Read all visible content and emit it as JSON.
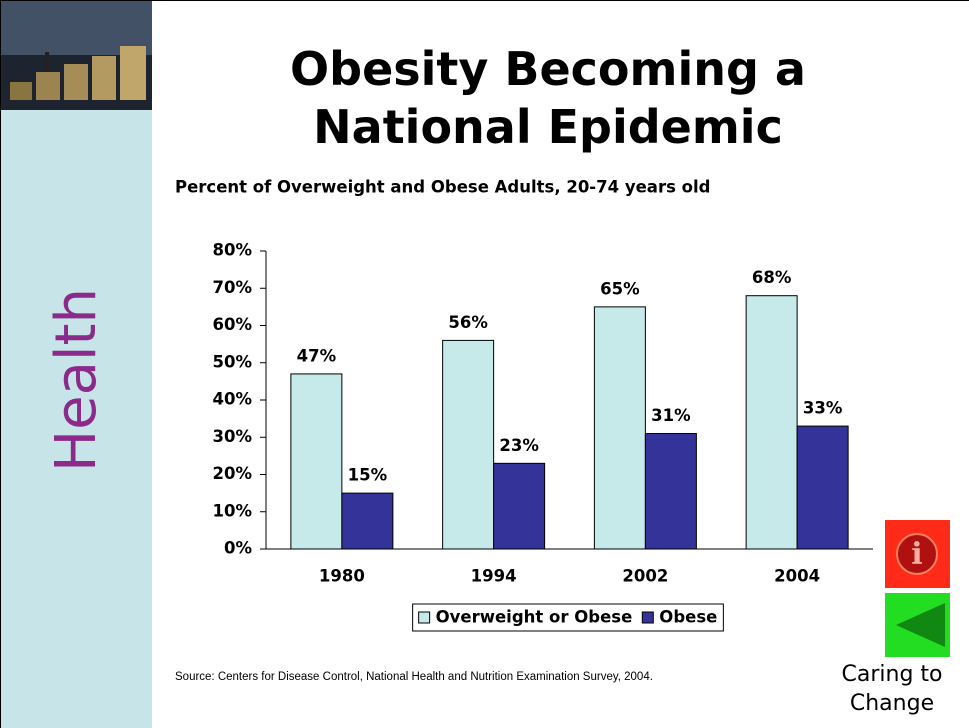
{
  "sidebar_label": "Health",
  "footer_label": "Caring to Change",
  "chart_data": {
    "type": "bar",
    "title": "Obesity Becoming a National Epidemic",
    "subtitle": "Percent of Overweight and Obese Adults, 20-74 years old",
    "source": "Source: Centers for Disease Control, National Health and Nutrition Examination Survey, 2004.",
    "categories": [
      "1980",
      "1994",
      "2002",
      "2004"
    ],
    "series": [
      {
        "name": "Overweight or Obese",
        "color": "#c6e9e9",
        "values": [
          47,
          56,
          65,
          68
        ],
        "value_labels": [
          "47%",
          "56%",
          "65%",
          "68%"
        ]
      },
      {
        "name": "Obese",
        "color": "#333399",
        "values": [
          15,
          23,
          31,
          33
        ],
        "value_labels": [
          "15%",
          "23%",
          "31%",
          "33%"
        ]
      }
    ],
    "ylim": [
      0,
      80
    ],
    "yticks": [
      {
        "value": 0,
        "label": "0%"
      },
      {
        "value": 10,
        "label": "10%"
      },
      {
        "value": 20,
        "label": "20%"
      },
      {
        "value": 30,
        "label": "30%"
      },
      {
        "value": 40,
        "label": "40%"
      },
      {
        "value": 50,
        "label": "50%"
      },
      {
        "value": 60,
        "label": "60%"
      },
      {
        "value": 70,
        "label": "70%"
      },
      {
        "value": 80,
        "label": "80%"
      }
    ],
    "grid": false,
    "legend": "bottom"
  }
}
